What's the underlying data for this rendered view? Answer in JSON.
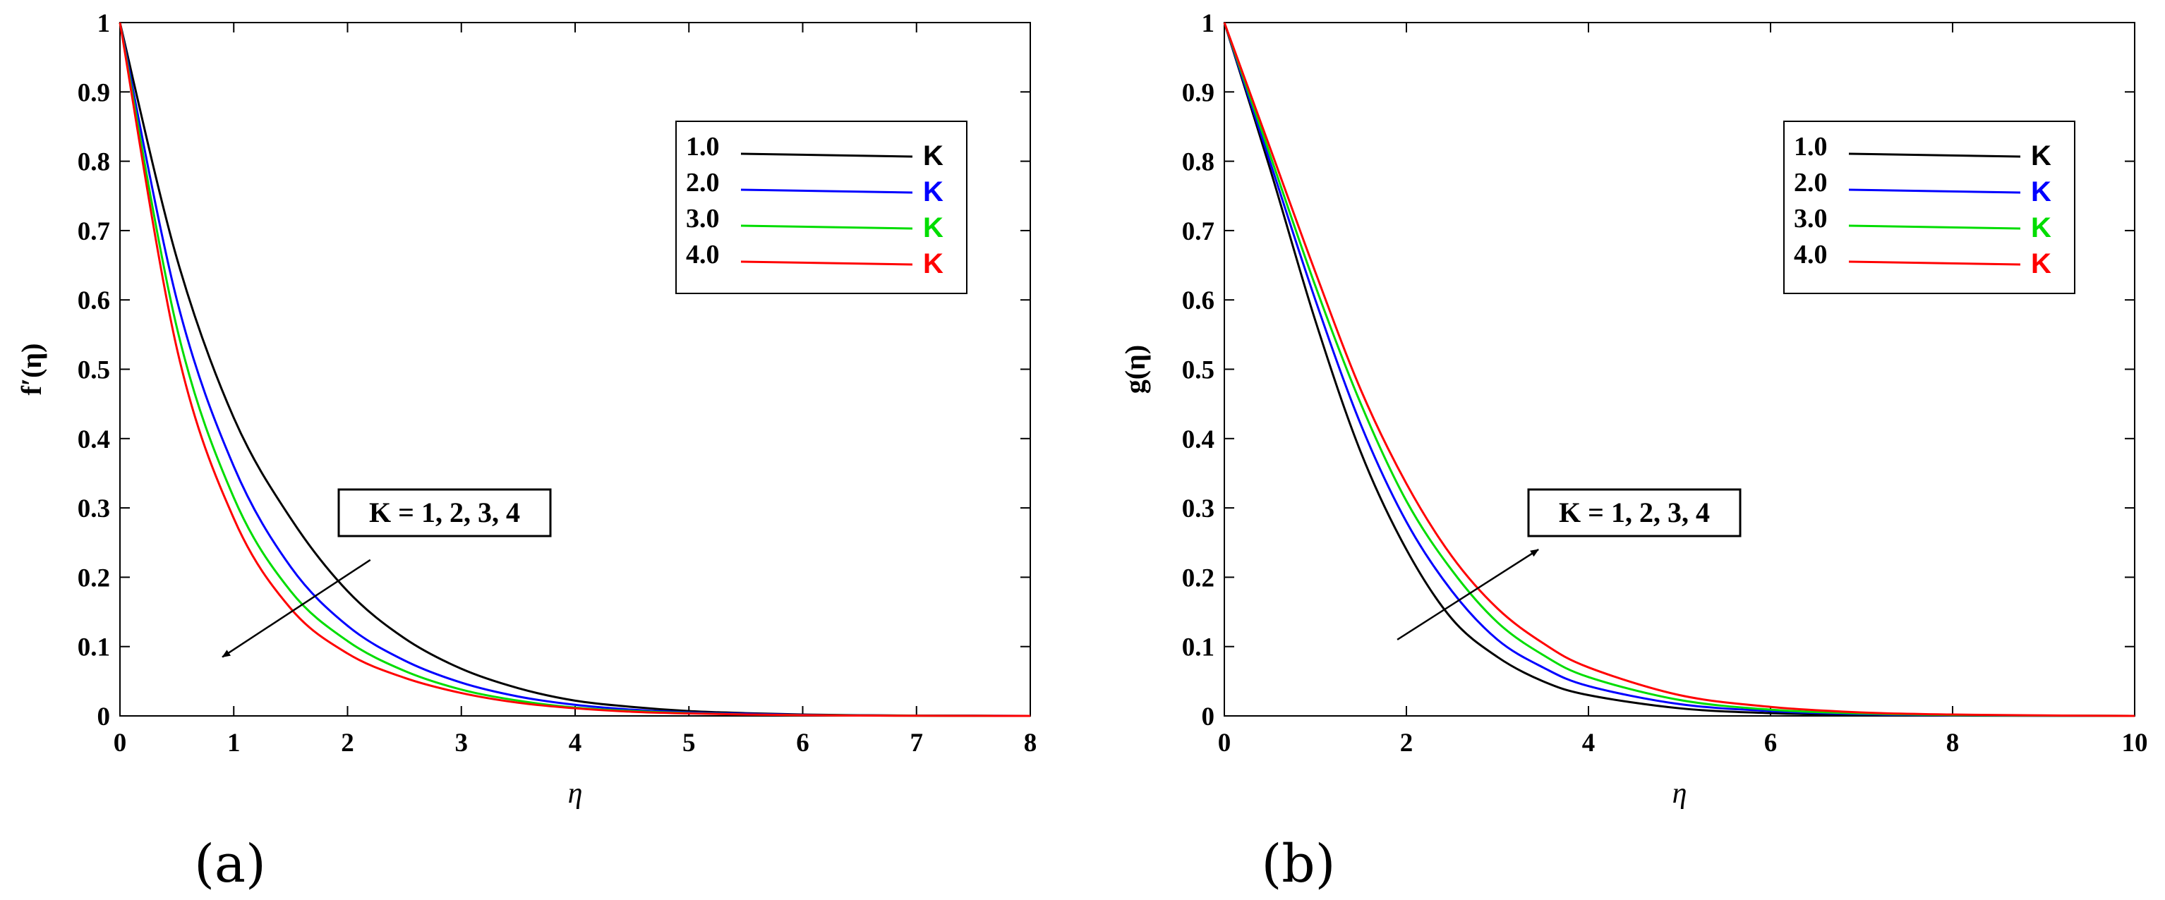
{
  "chart_data": [
    {
      "id": "a",
      "type": "line",
      "subtitle": "(a)",
      "xlabel": "η",
      "ylabel": "f′(η)",
      "xlim": [
        0,
        8
      ],
      "ylim": [
        0,
        1
      ],
      "xticks": [
        "0",
        "1",
        "2",
        "3",
        "4",
        "5",
        "6",
        "7",
        "8"
      ],
      "yticks": [
        "0",
        "0.1",
        "0.2",
        "0.3",
        "0.4",
        "0.5",
        "0.6",
        "0.7",
        "0.8",
        "0.9",
        "1"
      ],
      "x": [
        0,
        0.5,
        1,
        1.5,
        2,
        2.5,
        3,
        3.5,
        4,
        4.5,
        5,
        5.5,
        6,
        6.5,
        7,
        7.5,
        8
      ],
      "series": [
        {
          "name": "K",
          "value_label": "1.0",
          "color": "#000000",
          "values": [
            1,
            0.66,
            0.43,
            0.285,
            0.18,
            0.112,
            0.068,
            0.04,
            0.022,
            0.013,
            0.007,
            0.004,
            0.002,
            0.001,
            0.0005,
            0.0002,
            0
          ]
        },
        {
          "name": "K",
          "value_label": "2.0",
          "color": "#0000ff",
          "values": [
            1,
            0.6,
            0.36,
            0.215,
            0.13,
            0.08,
            0.048,
            0.028,
            0.016,
            0.009,
            0.005,
            0.003,
            0.0015,
            0.0008,
            0.0004,
            0.0002,
            0
          ]
        },
        {
          "name": "K",
          "value_label": "3.0",
          "color": "#00dd00",
          "values": [
            1,
            0.56,
            0.315,
            0.18,
            0.108,
            0.065,
            0.038,
            0.022,
            0.012,
            0.007,
            0.004,
            0.002,
            0.0012,
            0.0006,
            0.0003,
            0.0001,
            0
          ]
        },
        {
          "name": "K",
          "value_label": "4.0",
          "color": "#ff0000",
          "values": [
            1,
            0.53,
            0.285,
            0.155,
            0.09,
            0.055,
            0.033,
            0.019,
            0.011,
            0.006,
            0.0035,
            0.002,
            0.001,
            0.0005,
            0.0002,
            0.0001,
            0
          ]
        }
      ],
      "annotation": {
        "text": "K = 1, 2, 3, 4",
        "arrow_from": [
          2.2,
          0.225
        ],
        "arrow_to": [
          0.9,
          0.085
        ]
      }
    },
    {
      "id": "b",
      "type": "line",
      "subtitle": "(b)",
      "xlabel": "η",
      "ylabel": "g(η)",
      "xlim": [
        0,
        10
      ],
      "ylim": [
        0,
        1
      ],
      "xticks": [
        "0",
        "2",
        "4",
        "6",
        "8",
        "10"
      ],
      "yticks": [
        "0",
        "0.1",
        "0.2",
        "0.3",
        "0.4",
        "0.5",
        "0.6",
        "0.7",
        "0.8",
        "0.9",
        "1"
      ],
      "x": [
        0,
        0.5,
        1,
        1.5,
        2,
        2.5,
        3,
        3.5,
        4,
        5,
        6,
        7,
        8,
        9,
        10
      ],
      "series": [
        {
          "name": "K",
          "value_label": "1.0",
          "color": "#000000",
          "values": [
            1,
            0.79,
            0.57,
            0.38,
            0.24,
            0.14,
            0.085,
            0.05,
            0.03,
            0.011,
            0.004,
            0.0015,
            0.0005,
            0.0002,
            0
          ]
        },
        {
          "name": "K",
          "value_label": "2.0",
          "color": "#0000ff",
          "values": [
            1,
            0.8,
            0.6,
            0.42,
            0.28,
            0.18,
            0.11,
            0.07,
            0.043,
            0.017,
            0.007,
            0.0025,
            0.001,
            0.0003,
            0
          ]
        },
        {
          "name": "K",
          "value_label": "3.0",
          "color": "#00dd00",
          "values": [
            1,
            0.81,
            0.62,
            0.45,
            0.31,
            0.21,
            0.135,
            0.088,
            0.056,
            0.023,
            0.009,
            0.0035,
            0.0013,
            0.0004,
            0
          ]
        },
        {
          "name": "K",
          "value_label": "4.0",
          "color": "#ff0000",
          "values": [
            1,
            0.82,
            0.64,
            0.47,
            0.335,
            0.23,
            0.155,
            0.105,
            0.07,
            0.03,
            0.013,
            0.005,
            0.002,
            0.0007,
            0
          ]
        }
      ],
      "annotation": {
        "text": "K = 1, 2, 3, 4",
        "arrow_from": [
          1.9,
          0.11
        ],
        "arrow_to": [
          3.45,
          0.24
        ]
      }
    }
  ]
}
